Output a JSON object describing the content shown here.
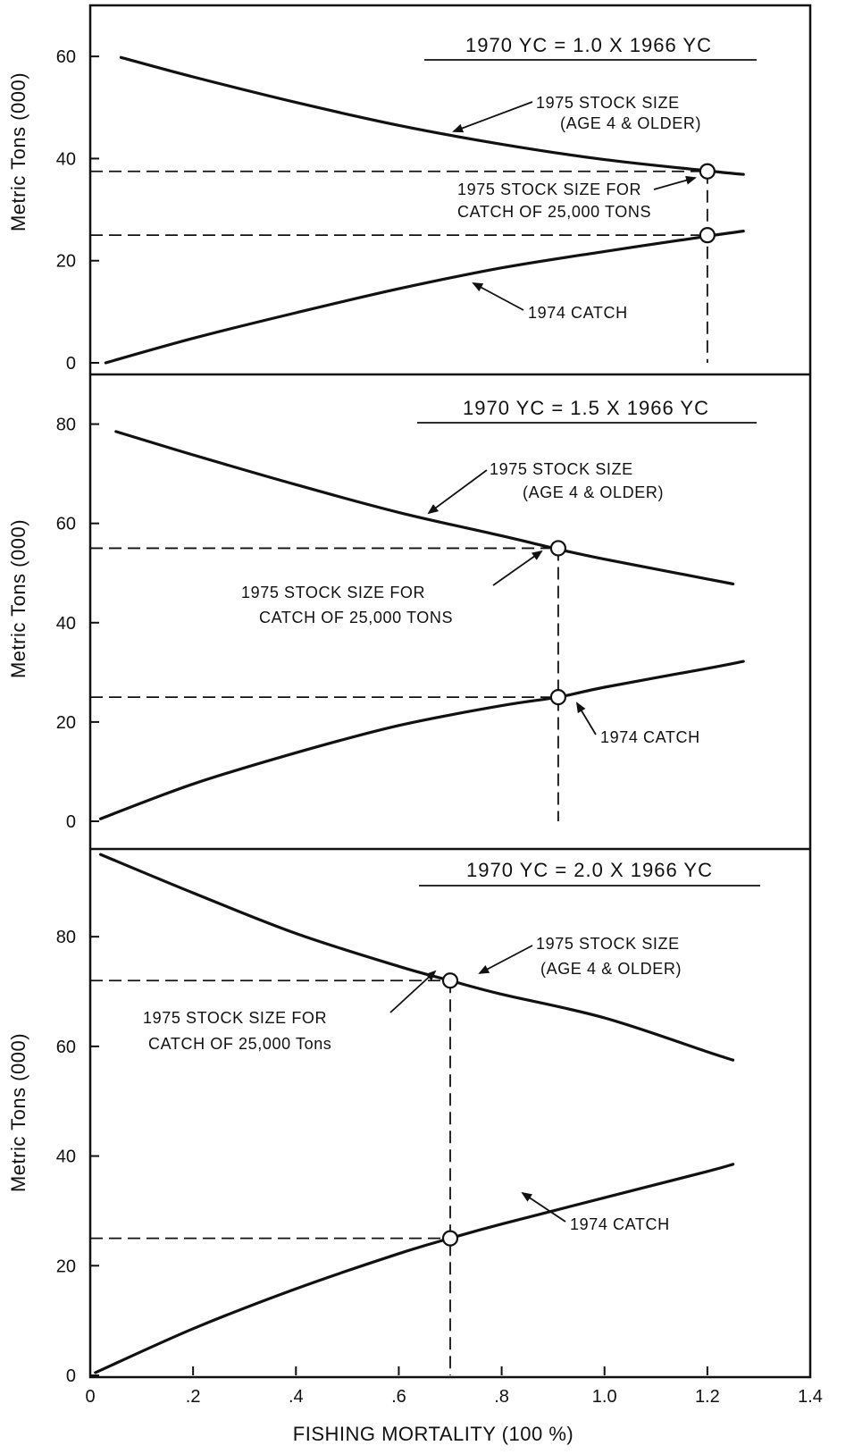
{
  "chart_data": [
    {
      "type": "line",
      "title": "1970 YC = 1.0 X 1966 YC",
      "ylabel": "Metric Tons (000)",
      "xlabel": "",
      "xlim": [
        0,
        1.4
      ],
      "ylim": [
        0,
        70
      ],
      "yticks": [
        "0",
        "20",
        "40",
        "60"
      ],
      "series": [
        {
          "name": "1975 STOCK SIZE (AGE 4 & OLDER)",
          "x": [
            0.06,
            0.2,
            0.4,
            0.6,
            0.8,
            1.0,
            1.2,
            1.27
          ],
          "y": [
            59.8,
            56.0,
            51.0,
            46.5,
            42.8,
            39.8,
            37.6,
            36.9
          ]
        },
        {
          "name": "1974 CATCH",
          "x": [
            0.03,
            0.2,
            0.4,
            0.6,
            0.8,
            1.0,
            1.2,
            1.27
          ],
          "y": [
            0.0,
            4.8,
            9.8,
            14.5,
            18.6,
            21.8,
            24.8,
            25.8
          ]
        }
      ],
      "reference": {
        "x": 1.2,
        "stock_y": 37.5,
        "catch_y": 25
      },
      "annotations": {
        "stock_label": [
          "1975 STOCK SIZE",
          "(AGE 4 & OLDER)"
        ],
        "point_label": [
          "1975 STOCK SIZE FOR",
          "CATCH OF 25,000 TONS"
        ],
        "catch_label": "1974 CATCH"
      }
    },
    {
      "type": "line",
      "title": "1970 YC = 1.5 X 1966 YC",
      "ylabel": "Metric Tons (000)",
      "xlabel": "",
      "xlim": [
        0,
        1.4
      ],
      "ylim": [
        0,
        90
      ],
      "yticks": [
        "0",
        "20",
        "40",
        "60",
        "80"
      ],
      "series": [
        {
          "name": "1975 STOCK SIZE (AGE 4 & OLDER)",
          "x": [
            0.05,
            0.2,
            0.4,
            0.6,
            0.8,
            0.91,
            1.0,
            1.2,
            1.25
          ],
          "y": [
            78.5,
            73.8,
            67.8,
            62.2,
            57.5,
            54.8,
            52.8,
            48.8,
            47.8
          ]
        },
        {
          "name": "1974 CATCH",
          "x": [
            0.02,
            0.2,
            0.4,
            0.6,
            0.8,
            0.91,
            1.0,
            1.2,
            1.27
          ],
          "y": [
            0.5,
            7.5,
            13.8,
            19.3,
            23.3,
            25.0,
            27.0,
            30.8,
            32.2
          ]
        }
      ],
      "reference": {
        "x": 0.91,
        "stock_y": 55,
        "catch_y": 25
      },
      "annotations": {
        "stock_label": [
          "1975 STOCK SIZE",
          "(AGE 4 & OLDER)"
        ],
        "point_label": [
          "1975 STOCK SIZE FOR",
          "CATCH OF 25,000 TONS"
        ],
        "catch_label": "1974 CATCH"
      }
    },
    {
      "type": "line",
      "title": "1970 YC = 2.0 X 1966 YC",
      "ylabel": "Metric Tons (000)",
      "xlabel": "FISHING MORTALITY (100 %)",
      "xlim": [
        0,
        1.4
      ],
      "ylim": [
        0,
        96
      ],
      "yticks": [
        "0",
        "20",
        "40",
        "60",
        "80"
      ],
      "xticks": [
        "0",
        ".2",
        ".4",
        ".6",
        ".8",
        "1.0",
        "1.2",
        "1.4"
      ],
      "series": [
        {
          "name": "1975 STOCK SIZE (AGE 4 & OLDER)",
          "x": [
            0.02,
            0.2,
            0.4,
            0.6,
            0.7,
            0.8,
            1.0,
            1.2,
            1.25
          ],
          "y": [
            95.0,
            88.0,
            80.6,
            74.6,
            72.0,
            69.5,
            65.2,
            59.0,
            57.5
          ]
        },
        {
          "name": "1974 CATCH",
          "x": [
            0.01,
            0.2,
            0.4,
            0.6,
            0.7,
            0.8,
            1.0,
            1.2,
            1.25
          ],
          "y": [
            0.5,
            8.5,
            15.8,
            22.2,
            25.0,
            27.6,
            32.4,
            37.2,
            38.5
          ]
        }
      ],
      "reference": {
        "x": 0.7,
        "stock_y": 72,
        "catch_y": 25
      },
      "annotations": {
        "stock_label": [
          "1975 STOCK SIZE",
          "(AGE 4 & OLDER)"
        ],
        "point_label": [
          "1975 STOCK SIZE FOR",
          "CATCH OF 25,000 Tons"
        ],
        "catch_label": "1974 CATCH"
      }
    }
  ]
}
